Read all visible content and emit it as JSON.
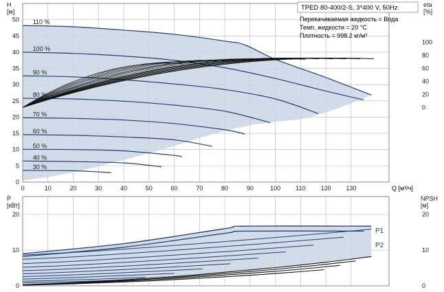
{
  "colors": {
    "curve": "#1f3f73",
    "envelope_fill": "#c9d6e4",
    "grid": "#b3b3b3",
    "frame": "#8a8a8a",
    "text": "#1a1a1a",
    "eta_line": "#111111"
  },
  "chart_data": [
    {
      "type": "line",
      "title": "TPED 80-400/2-S, 3*400 V, 50Hz",
      "annotations": [
        "Перекачиваемая жидкость = Вода",
        "Темп. жидкости = 20 °C",
        "Плотность = 998.2 кг/м³"
      ],
      "xlabel": "Q [м³/ч]",
      "ylabel": "H\n[м]",
      "ylabel_right": "eta\n[%]",
      "xlim": [
        0,
        145
      ],
      "ylim": [
        0,
        55
      ],
      "ylim_right": [
        -115,
        160
      ],
      "x_ticks": [
        0,
        10,
        20,
        30,
        40,
        50,
        60,
        70,
        80,
        90,
        100,
        110,
        120,
        130
      ],
      "y_ticks": [
        0,
        5,
        10,
        15,
        20,
        25,
        30,
        35,
        40,
        45,
        50
      ],
      "y_ticks_right": [
        0,
        20,
        40,
        60,
        80,
        100
      ],
      "grid": true,
      "envelope": {
        "x": [
          0,
          5,
          20,
          40,
          60,
          80,
          88,
          100,
          120,
          138,
          130,
          120,
          110,
          100,
          90,
          80,
          70,
          60,
          50,
          40,
          30,
          20,
          10,
          0
        ],
        "y": [
          48.2,
          48.2,
          47.8,
          46.8,
          45.5,
          43.4,
          42.2,
          37.8,
          32.2,
          26.8,
          24.2,
          21.4,
          19.3,
          18.6,
          17.5,
          15.8,
          13.6,
          11.1,
          8.9,
          6.8,
          4.8,
          3.0,
          1.5,
          0.5
        ]
      },
      "speed_labels": [
        "110 %",
        "100 %",
        "90 %",
        "80 %",
        "70 %",
        "60 %",
        "50 %",
        "40 %",
        "30 %"
      ],
      "series": [
        {
          "name": "110 %",
          "x": [
            0,
            20,
            40,
            60,
            80,
            88,
            100,
            120,
            138
          ],
          "y": [
            48.2,
            47.8,
            46.8,
            45.5,
            43.4,
            42.2,
            37.8,
            32.2,
            26.8
          ]
        },
        {
          "name": "100 %",
          "x": [
            0,
            20,
            40,
            60,
            80,
            100,
            120,
            135
          ],
          "y": [
            40.0,
            39.6,
            38.8,
            37.5,
            35.2,
            31.9,
            28.0,
            25.3
          ]
        },
        {
          "name": "90 %",
          "x": [
            0,
            20,
            40,
            60,
            80,
            100,
            117
          ],
          "y": [
            32.7,
            32.4,
            31.5,
            30.2,
            28.5,
            25.6,
            21.1
          ]
        },
        {
          "name": "80 %",
          "x": [
            0,
            20,
            40,
            60,
            80,
            98
          ],
          "y": [
            25.8,
            25.6,
            24.9,
            23.7,
            21.8,
            18.3
          ]
        },
        {
          "name": "70 %",
          "x": [
            0,
            20,
            40,
            60,
            80,
            88
          ],
          "y": [
            19.8,
            19.6,
            19.1,
            18.0,
            16.1,
            14.8
          ]
        },
        {
          "name": "60 %",
          "x": [
            0,
            20,
            40,
            60,
            75
          ],
          "y": [
            14.6,
            14.4,
            13.9,
            13.0,
            11.0
          ]
        },
        {
          "name": "50 %",
          "x": [
            0,
            20,
            40,
            60,
            63
          ],
          "y": [
            10.1,
            10.0,
            9.6,
            8.2,
            7.7
          ]
        },
        {
          "name": "40 %",
          "x": [
            0,
            20,
            40,
            55
          ],
          "y": [
            6.5,
            6.3,
            5.9,
            4.7
          ]
        },
        {
          "name": "30 %",
          "x": [
            0,
            20,
            35
          ],
          "y": [
            3.6,
            3.5,
            2.9
          ]
        }
      ]
    },
    {
      "type": "line",
      "title": "",
      "xlabel": "",
      "ylabel": "P\n[кВт]",
      "ylabel_right": "NPSH\n[м]",
      "xlim": [
        0,
        145
      ],
      "ylim": [
        0,
        25
      ],
      "y_ticks": [
        0,
        10,
        20
      ],
      "y_ticks_right": [
        0,
        10,
        20
      ],
      "grid": true,
      "legend_labels": [
        "P1",
        "P2"
      ],
      "series": [
        {
          "name": "P1",
          "x": [
            0,
            40,
            80,
            88,
            138
          ],
          "y": [
            9.0,
            11.8,
            16.0,
            16.7,
            16.7
          ]
        },
        {
          "name": "P2",
          "x": [
            0,
            40,
            80,
            88,
            135
          ],
          "y": [
            8.2,
            10.8,
            14.7,
            15.3,
            15.3
          ]
        },
        {
          "name": "NPSH",
          "x": [
            0,
            20,
            40,
            60,
            80,
            100,
            120,
            138
          ],
          "y": [
            0.3,
            0.9,
            1.7,
            2.6,
            3.8,
            5.1,
            6.6,
            8.2
          ]
        }
      ]
    }
  ]
}
